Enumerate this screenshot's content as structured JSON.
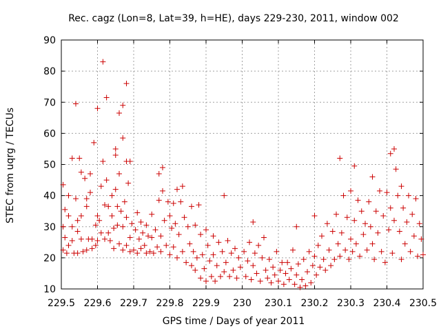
{
  "chart_data": {
    "type": "scatter",
    "title": "Rec. cagz (Lon=8, Lat=39, h=HE), days 229-230, 2011, window 002",
    "xlabel": "GPS time / Days of year 2011",
    "ylabel": "STEC from uqrg / TECUs",
    "xlim": [
      229.5,
      230.5
    ],
    "ylim": [
      10,
      90
    ],
    "xticks": [
      "229.5",
      "229.6",
      "229.7",
      "229.8",
      "229.9",
      "230",
      "230.1",
      "230.2",
      "230.3",
      "230.4",
      "230.5"
    ],
    "yticks": [
      "10",
      "20",
      "30",
      "40",
      "50",
      "60",
      "70",
      "80",
      "90"
    ],
    "grid": true,
    "marker": "plus",
    "color": "#cc0000",
    "points": [
      [
        229.505,
        43.5
      ],
      [
        229.51,
        35.5
      ],
      [
        229.505,
        30.0
      ],
      [
        229.51,
        26.5
      ],
      [
        229.505,
        22.5
      ],
      [
        229.515,
        21.5
      ],
      [
        229.52,
        40.0
      ],
      [
        229.52,
        33.5
      ],
      [
        229.52,
        24.0
      ],
      [
        229.53,
        52.0
      ],
      [
        229.53,
        30.0
      ],
      [
        229.53,
        25.5
      ],
      [
        229.535,
        21.5
      ],
      [
        229.54,
        69.5
      ],
      [
        229.54,
        39.0
      ],
      [
        229.545,
        32.0
      ],
      [
        229.545,
        28.5
      ],
      [
        229.545,
        21.5
      ],
      [
        229.55,
        52.0
      ],
      [
        229.555,
        47.5
      ],
      [
        229.555,
        33.5
      ],
      [
        229.555,
        26.0
      ],
      [
        229.56,
        22.0
      ],
      [
        229.565,
        45.5
      ],
      [
        229.57,
        39.0
      ],
      [
        229.57,
        36.5
      ],
      [
        229.57,
        22.5
      ],
      [
        229.575,
        26.0
      ],
      [
        229.58,
        47.0
      ],
      [
        229.58,
        41.0
      ],
      [
        229.585,
        26.0
      ],
      [
        229.585,
        23.0
      ],
      [
        229.59,
        57.0
      ],
      [
        229.595,
        30.5
      ],
      [
        229.595,
        24.0
      ],
      [
        229.6,
        68.0
      ],
      [
        229.6,
        33.5
      ],
      [
        229.6,
        25.5
      ],
      [
        229.605,
        32.0
      ],
      [
        229.61,
        43.0
      ],
      [
        229.61,
        28.0
      ],
      [
        229.615,
        83.0
      ],
      [
        229.615,
        51.0
      ],
      [
        229.62,
        37.0
      ],
      [
        229.62,
        26.0
      ],
      [
        229.625,
        71.5
      ],
      [
        229.625,
        45.0
      ],
      [
        229.63,
        36.5
      ],
      [
        229.63,
        28.0
      ],
      [
        229.635,
        25.5
      ],
      [
        229.64,
        40.0
      ],
      [
        229.64,
        33.5
      ],
      [
        229.645,
        29.5
      ],
      [
        229.645,
        23.0
      ],
      [
        229.65,
        55.0
      ],
      [
        229.65,
        53.0
      ],
      [
        229.65,
        42.0
      ],
      [
        229.655,
        36.5
      ],
      [
        229.655,
        30.5
      ],
      [
        229.66,
        66.5
      ],
      [
        229.66,
        47.0
      ],
      [
        229.66,
        24.5
      ],
      [
        229.665,
        35.0
      ],
      [
        229.67,
        69.0
      ],
      [
        229.67,
        58.5
      ],
      [
        229.67,
        30.0
      ],
      [
        229.67,
        22.5
      ],
      [
        229.675,
        38.0
      ],
      [
        229.68,
        76.0
      ],
      [
        229.68,
        51.0
      ],
      [
        229.68,
        33.0
      ],
      [
        229.68,
        24.0
      ],
      [
        229.685,
        44.0
      ],
      [
        229.69,
        51.0
      ],
      [
        229.69,
        26.5
      ],
      [
        229.69,
        22.0
      ],
      [
        229.695,
        31.0
      ],
      [
        229.7,
        22.5
      ],
      [
        229.705,
        29.0
      ],
      [
        229.71,
        34.5
      ],
      [
        229.71,
        21.5
      ],
      [
        229.715,
        26.0
      ],
      [
        229.72,
        31.5
      ],
      [
        229.72,
        23.0
      ],
      [
        229.725,
        28.0
      ],
      [
        229.73,
        24.0
      ],
      [
        229.735,
        30.5
      ],
      [
        229.735,
        21.5
      ],
      [
        229.74,
        27.0
      ],
      [
        229.745,
        22.0
      ],
      [
        229.75,
        34.0
      ],
      [
        229.75,
        26.5
      ],
      [
        229.755,
        21.5
      ],
      [
        229.76,
        29.0
      ],
      [
        229.765,
        23.5
      ],
      [
        229.77,
        47.0
      ],
      [
        229.77,
        38.5
      ],
      [
        229.775,
        27.0
      ],
      [
        229.775,
        22.0
      ],
      [
        229.78,
        49.0
      ],
      [
        229.78,
        41.5
      ],
      [
        229.785,
        32.0
      ],
      [
        229.79,
        24.0
      ],
      [
        229.795,
        38.0
      ],
      [
        229.8,
        33.5
      ],
      [
        229.8,
        21.0
      ],
      [
        229.805,
        29.5
      ],
      [
        229.81,
        37.5
      ],
      [
        229.81,
        23.5
      ],
      [
        229.815,
        31.0
      ],
      [
        229.82,
        42.0
      ],
      [
        229.82,
        20.0
      ],
      [
        229.825,
        27.5
      ],
      [
        229.83,
        38.0
      ],
      [
        229.835,
        43.0
      ],
      [
        229.835,
        22.0
      ],
      [
        229.84,
        33.0
      ],
      [
        229.845,
        18.5
      ],
      [
        229.85,
        30.0
      ],
      [
        229.855,
        24.5
      ],
      [
        229.86,
        36.5
      ],
      [
        229.86,
        17.5
      ],
      [
        229.865,
        22.0
      ],
      [
        229.87,
        30.5
      ],
      [
        229.87,
        16.0
      ],
      [
        229.875,
        20.0
      ],
      [
        229.88,
        37.0
      ],
      [
        229.885,
        27.5
      ],
      [
        229.885,
        13.5
      ],
      [
        229.89,
        21.0
      ],
      [
        229.895,
        16.5
      ],
      [
        229.9,
        29.0
      ],
      [
        229.9,
        12.5
      ],
      [
        229.905,
        24.0
      ],
      [
        229.91,
        19.0
      ],
      [
        229.915,
        14.0
      ],
      [
        229.92,
        27.0
      ],
      [
        229.92,
        21.0
      ],
      [
        229.925,
        12.5
      ],
      [
        229.93,
        17.5
      ],
      [
        229.935,
        25.0
      ],
      [
        229.94,
        14.0
      ],
      [
        229.945,
        22.0
      ],
      [
        229.95,
        40.0
      ],
      [
        229.95,
        15.5
      ],
      [
        229.955,
        18.5
      ],
      [
        229.96,
        25.5
      ],
      [
        229.965,
        14.0
      ],
      [
        229.97,
        21.5
      ],
      [
        229.975,
        16.0
      ],
      [
        229.98,
        23.0
      ],
      [
        229.985,
        13.5
      ],
      [
        229.99,
        20.0
      ],
      [
        229.995,
        17.0
      ],
      [
        230.005,
        22.0
      ],
      [
        230.01,
        14.0
      ],
      [
        230.015,
        19.0
      ],
      [
        230.02,
        25.0
      ],
      [
        230.025,
        13.0
      ],
      [
        230.03,
        31.5
      ],
      [
        230.03,
        17.5
      ],
      [
        230.035,
        21.5
      ],
      [
        230.04,
        15.0
      ],
      [
        230.045,
        24.0
      ],
      [
        230.05,
        12.5
      ],
      [
        230.055,
        20.0
      ],
      [
        230.06,
        26.5
      ],
      [
        230.065,
        16.0
      ],
      [
        230.07,
        13.5
      ],
      [
        230.075,
        19.5
      ],
      [
        230.08,
        12.0
      ],
      [
        230.085,
        17.0
      ],
      [
        230.09,
        14.5
      ],
      [
        230.095,
        22.0
      ],
      [
        230.1,
        12.5
      ],
      [
        230.105,
        16.0
      ],
      [
        230.11,
        18.5
      ],
      [
        230.115,
        11.5
      ],
      [
        230.12,
        15.0
      ],
      [
        230.125,
        18.5
      ],
      [
        230.13,
        13.0
      ],
      [
        230.135,
        16.5
      ],
      [
        230.14,
        22.5
      ],
      [
        230.145,
        11.5
      ],
      [
        230.15,
        30.0
      ],
      [
        230.15,
        14.5
      ],
      [
        230.155,
        18.0
      ],
      [
        230.16,
        10.5
      ],
      [
        230.165,
        13.0
      ],
      [
        230.17,
        19.5
      ],
      [
        230.175,
        11.0
      ],
      [
        230.18,
        15.5
      ],
      [
        230.185,
        22.0
      ],
      [
        230.19,
        12.0
      ],
      [
        230.195,
        17.5
      ],
      [
        230.2,
        33.5
      ],
      [
        230.2,
        20.5
      ],
      [
        230.205,
        14.5
      ],
      [
        230.21,
        24.0
      ],
      [
        230.215,
        17.0
      ],
      [
        230.22,
        27.0
      ],
      [
        230.225,
        19.5
      ],
      [
        230.23,
        16.0
      ],
      [
        230.235,
        31.0
      ],
      [
        230.24,
        22.5
      ],
      [
        230.245,
        17.5
      ],
      [
        230.25,
        28.5
      ],
      [
        230.255,
        19.5
      ],
      [
        230.26,
        34.0
      ],
      [
        230.265,
        24.5
      ],
      [
        230.27,
        52.0
      ],
      [
        230.27,
        20.5
      ],
      [
        230.275,
        28.0
      ],
      [
        230.28,
        40.0
      ],
      [
        230.285,
        22.5
      ],
      [
        230.29,
        33.0
      ],
      [
        230.295,
        19.5
      ],
      [
        230.3,
        41.5
      ],
      [
        230.3,
        26.0
      ],
      [
        230.305,
        22.0
      ],
      [
        230.31,
        49.5
      ],
      [
        230.31,
        32.0
      ],
      [
        230.315,
        24.5
      ],
      [
        230.32,
        38.5
      ],
      [
        230.325,
        20.5
      ],
      [
        230.33,
        35.0
      ],
      [
        230.335,
        27.5
      ],
      [
        230.34,
        31.0
      ],
      [
        230.345,
        22.5
      ],
      [
        230.35,
        38.0
      ],
      [
        230.355,
        30.0
      ],
      [
        230.36,
        46.0
      ],
      [
        230.36,
        24.5
      ],
      [
        230.365,
        19.5
      ],
      [
        230.37,
        35.0
      ],
      [
        230.375,
        28.0
      ],
      [
        230.38,
        41.5
      ],
      [
        230.385,
        22.0
      ],
      [
        230.39,
        33.5
      ],
      [
        230.395,
        18.5
      ],
      [
        230.4,
        41.0
      ],
      [
        230.405,
        29.0
      ],
      [
        230.41,
        53.5
      ],
      [
        230.41,
        36.0
      ],
      [
        230.415,
        21.5
      ],
      [
        230.42,
        55.0
      ],
      [
        230.42,
        32.0
      ],
      [
        230.425,
        48.5
      ],
      [
        230.43,
        40.0
      ],
      [
        230.435,
        28.5
      ],
      [
        230.44,
        43.0
      ],
      [
        230.44,
        19.5
      ],
      [
        230.445,
        36.0
      ],
      [
        230.45,
        24.5
      ],
      [
        230.455,
        31.5
      ],
      [
        230.46,
        40.0
      ],
      [
        230.465,
        22.0
      ],
      [
        230.47,
        34.0
      ],
      [
        230.475,
        27.0
      ],
      [
        230.48,
        39.0
      ],
      [
        230.485,
        20.5
      ],
      [
        230.49,
        31.0
      ],
      [
        230.495,
        26.0
      ],
      [
        230.5,
        21.0
      ]
    ]
  }
}
